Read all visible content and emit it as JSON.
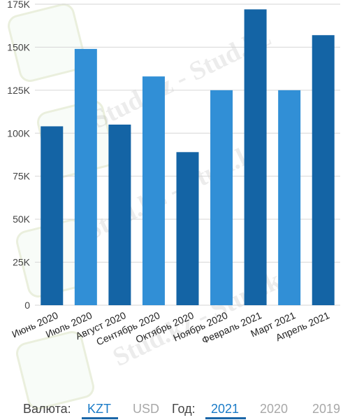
{
  "chart_data": {
    "type": "bar",
    "categories": [
      "Июнь 2020",
      "Июль 2020",
      "Август 2020",
      "Сентябрь 2020",
      "Октябрь 2020",
      "Ноябрь 2020",
      "Февраль 2021",
      "Март 2021",
      "Апрель 2021"
    ],
    "values": [
      104000,
      149000,
      105000,
      133000,
      89000,
      125000,
      172000,
      125000,
      157000
    ],
    "ylim": [
      0,
      175000
    ],
    "yticks": [
      0,
      25000,
      50000,
      75000,
      100000,
      125000,
      150000,
      175000
    ],
    "ytick_labels": [
      "0",
      "25K",
      "50K",
      "75K",
      "100K",
      "125K",
      "150K",
      "175K"
    ],
    "grid": true,
    "bar_colors": [
      "#1464a5",
      "#318fd6",
      "#1464a5",
      "#318fd6",
      "#1464a5",
      "#318fd6",
      "#1464a5",
      "#318fd6",
      "#1464a5"
    ]
  },
  "watermark": "Stud.kz - Stud.kz",
  "footer": {
    "currency_label": "Валюта:",
    "currency_options": [
      "KZT",
      "USD"
    ],
    "currency_selected": "KZT",
    "year_label": "Год:",
    "year_options": [
      "2021",
      "2020",
      "2019"
    ],
    "year_selected": "2021"
  }
}
